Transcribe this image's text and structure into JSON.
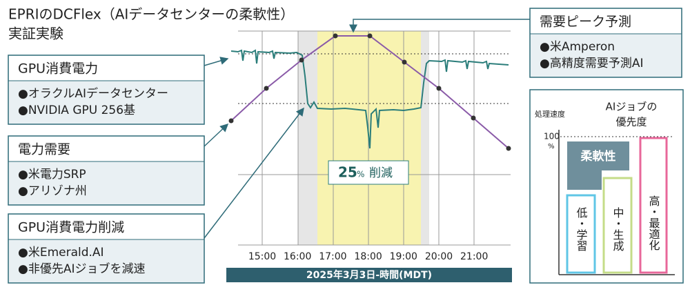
{
  "header": {
    "title": "EPRIのDCFlex（AIデータセンターの柔軟性）",
    "subtitle": "実証実験"
  },
  "boxes": [
    {
      "title": "GPU消費電力",
      "items": [
        "●オラクルAIデータセンター",
        "●NVIDIA GPU 256基"
      ]
    },
    {
      "title": "電力需要",
      "items": [
        "●米電力SRP",
        "●アリゾナ州"
      ]
    },
    {
      "title": "GPU消費電力削減",
      "items": [
        "●米Emerald.AI",
        "●非優先AIジョブを減速"
      ]
    },
    {
      "title": "需要ピーク予測",
      "items": [
        "●米Amperon",
        "●高精度需要予測AI"
      ]
    }
  ],
  "chart": {
    "reduction_value": "25",
    "reduction_unit": "%",
    "reduction_text": "削減",
    "x_labels": [
      "15:00",
      "16:00",
      "17:00",
      "18:00",
      "19:00",
      "20:00",
      "21:00"
    ],
    "x_title": "2025年3月3日-時間(MDT)"
  },
  "priority": {
    "title_1": "AIジョブの",
    "title_2": "優先度",
    "y_title": "処理速度",
    "y_max": "100",
    "y_unit": "%",
    "flex": "柔軟性",
    "bars": [
      "低・学習",
      "中・生成",
      "高・最適化"
    ]
  }
}
